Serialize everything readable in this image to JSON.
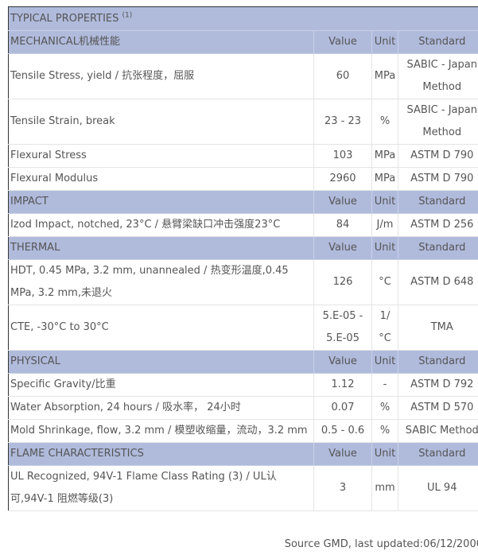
{
  "title": "TYPICAL PROPERTIES",
  "title_note": "(1)",
  "sections": [
    {
      "name": "MECHANICAL机械性能",
      "headers": [
        "Value",
        "Unit",
        "Standard"
      ],
      "rows": [
        {
          "property": "Tensile Stress, yield / 抗张程度，屈服",
          "value": "60",
          "unit": "MPa",
          "standard": "SABIC - Japan Method"
        },
        {
          "property": "Tensile Strain, break",
          "value": "23 - 23",
          "unit": "%",
          "standard": "SABIC - Japan Method"
        },
        {
          "property": "Flexural Stress",
          "value": "103",
          "unit": "MPa",
          "standard": "ASTM D 790"
        },
        {
          "property": "Flexural Modulus",
          "value": "2960",
          "unit": "MPa",
          "standard": "ASTM D 790"
        }
      ]
    },
    {
      "name": "IMPACT",
      "headers": [
        "Value",
        "Unit",
        "Standard"
      ],
      "rows": [
        {
          "property": "Izod Impact, notched, 23°C / 悬臂梁缺口冲击强度23°C",
          "value": "84",
          "unit": "J/m",
          "standard": "ASTM D 256"
        }
      ]
    },
    {
      "name": "THERMAL",
      "headers": [
        "Value",
        "Unit",
        "Standard"
      ],
      "rows": [
        {
          "property": "HDT, 0.45 MPa, 3.2 mm, unannealed / 热变形温度,0.45 MPa, 3.2 mm,未退火",
          "value": "126",
          "unit": "°C",
          "standard": "ASTM D 648"
        },
        {
          "property": "CTE, -30°C to 30°C",
          "value": "5.E-05 - 5.E-05",
          "unit": "1/°C",
          "standard": "TMA"
        }
      ]
    },
    {
      "name": "PHYSICAL",
      "headers": [
        "Value",
        "Unit",
        "Standard"
      ],
      "rows": [
        {
          "property": "Specific Gravity/比重",
          "value": "1.12",
          "unit": "-",
          "standard": "ASTM D 792"
        },
        {
          "property": "Water Absorption, 24 hours / 吸水率， 24小时",
          "value": "0.07",
          "unit": "%",
          "standard": "ASTM D 570"
        },
        {
          "property": "Mold Shrinkage, flow, 3.2 mm / 模塑收缩量，流动，3.2 mm",
          "value": "0.5 - 0.6",
          "unit": "%",
          "standard": "SABIC Method"
        }
      ]
    },
    {
      "name": "FLAME CHARACTERISTICS",
      "headers": [
        "Value",
        "Unit",
        "Standard"
      ],
      "rows": [
        {
          "property": "UL Recognized, 94V-1 Flame Class Rating (3) / UL认可,94V-1 阻燃等级(3)",
          "value": "3",
          "unit": "mm",
          "standard": "UL 94"
        }
      ]
    }
  ],
  "footer": "Source GMD, last updated:06/12/2000",
  "colors": {
    "section_bg": "#b0bbdc"
  }
}
